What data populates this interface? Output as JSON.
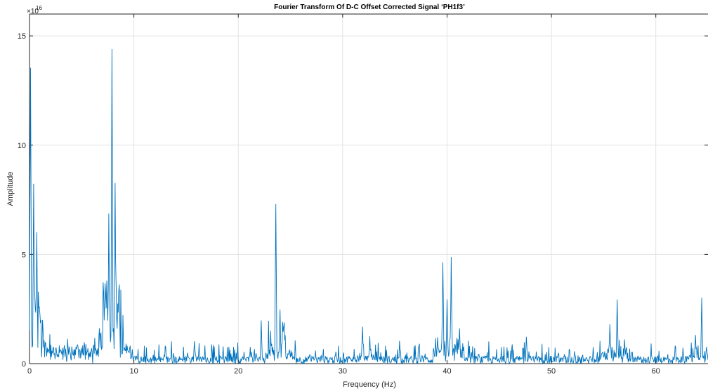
{
  "chart_data": {
    "type": "line",
    "title": "Fourier Transform Of D-C Offset Corrected Signal ‘PH1f3’",
    "xlabel": "Frequency (Hz)",
    "ylabel": "Amplitude",
    "y_exponent_base": "×10",
    "y_exponent_power": "16",
    "xlim": [
      0,
      65
    ],
    "ylim": [
      0,
      16
    ],
    "x_ticks": [
      0,
      10,
      20,
      30,
      40,
      50,
      60
    ],
    "y_ticks": [
      0,
      5,
      10,
      15
    ],
    "grid": true,
    "line_color": "#0072bd",
    "peaks_note_units": "amplitude in units of 1e16",
    "peaks": [
      {
        "x": 0.1,
        "y": 15.3
      },
      {
        "x": 0.4,
        "y": 9.0
      },
      {
        "x": 0.7,
        "y": 6.3
      },
      {
        "x": 1.0,
        "y": 2.4
      },
      {
        "x": 7.6,
        "y": 7.3
      },
      {
        "x": 7.9,
        "y": 15.9
      },
      {
        "x": 8.2,
        "y": 9.3
      },
      {
        "x": 8.6,
        "y": 3.9
      },
      {
        "x": 15.8,
        "y": 1.2
      },
      {
        "x": 22.2,
        "y": 2.1
      },
      {
        "x": 23.6,
        "y": 8.0
      },
      {
        "x": 24.0,
        "y": 2.7
      },
      {
        "x": 24.4,
        "y": 2.2
      },
      {
        "x": 31.9,
        "y": 1.8
      },
      {
        "x": 32.6,
        "y": 1.3
      },
      {
        "x": 39.6,
        "y": 5.1
      },
      {
        "x": 40.0,
        "y": 3.0
      },
      {
        "x": 40.4,
        "y": 4.9
      },
      {
        "x": 41.2,
        "y": 1.7
      },
      {
        "x": 47.6,
        "y": 1.4
      },
      {
        "x": 55.6,
        "y": 2.1
      },
      {
        "x": 56.3,
        "y": 3.2
      },
      {
        "x": 63.8,
        "y": 1.5
      },
      {
        "x": 64.4,
        "y": 3.4
      }
    ],
    "baseline_level": 0.35,
    "baseline_noise": 0.55
  }
}
